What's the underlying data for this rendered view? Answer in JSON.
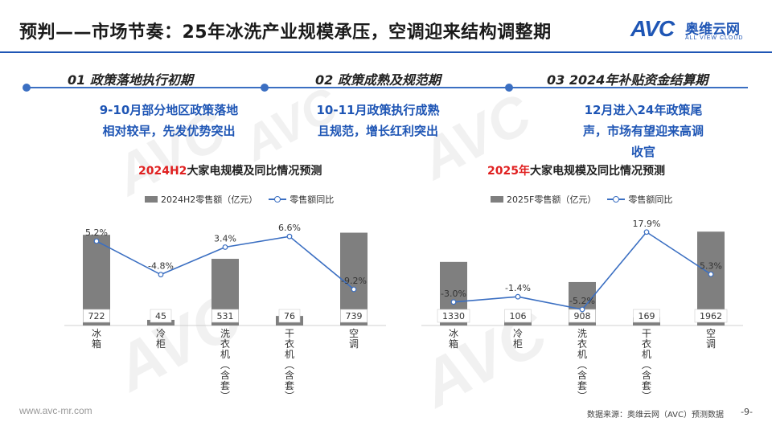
{
  "header": {
    "title": "预判——市场节奏：25年冰洗产业规模承压，空调迎来结构调整期",
    "logo_mark": "AVC",
    "logo_cn": "奥维云网",
    "logo_en": "ALL VIEW CLOUD"
  },
  "phases": [
    {
      "title": "01   政策落地执行初期",
      "desc_lines": [
        "9-10月部分地区政策落地",
        "相对较早，先发优势突出"
      ]
    },
    {
      "title": "02  政策成熟及规范期",
      "desc_lines": [
        "10-11月政策执行成熟",
        "且规范，增长红利突出"
      ]
    },
    {
      "title": "03  2024年补贴资金结算期",
      "desc_lines": [
        "12月进入24年政策尾",
        "声，市场有望迎来高调",
        "收官"
      ]
    }
  ],
  "colors": {
    "accent": "#1f56b5",
    "bar": "#7f7f7f",
    "line": "#3b6fc2",
    "highlight": "#e02020"
  },
  "charts": [
    {
      "title_highlight": "2024H2",
      "title_rest": "大家电规模及同比情况预测",
      "legend_bar": "2024H2零售额（亿元）",
      "legend_line": "零售额同比"
    },
    {
      "title_highlight": "2025年",
      "title_rest": "大家电规模及同比情况预测",
      "legend_bar": "2025F零售额（亿元）",
      "legend_line": "零售额同比"
    }
  ],
  "chart_data": [
    {
      "type": "bar",
      "title": "2024H2大家电规模及同比情况预测",
      "categories": [
        "冰箱",
        "冷柜",
        "洗衣机（含套）",
        "干衣机（含套）",
        "空调"
      ],
      "series": [
        {
          "name": "2024H2零售额（亿元）",
          "type": "bar",
          "values": [
            722,
            45,
            531,
            76,
            739
          ]
        },
        {
          "name": "零售额同比",
          "type": "line",
          "unit": "%",
          "values": [
            5.2,
            -4.8,
            3.4,
            6.6,
            -9.2
          ]
        }
      ],
      "value_labels": [
        "722",
        "45",
        "531",
        "76",
        "739"
      ],
      "pct_labels": [
        "5.2%",
        "-4.8%",
        "3.4%",
        "6.6%",
        "-9.2%"
      ],
      "bar_ylim": [
        0,
        800
      ],
      "line_ylim": [
        -20,
        10
      ]
    },
    {
      "type": "bar",
      "title": "2025年大家电规模及同比情况预测",
      "categories": [
        "冰箱",
        "冷柜",
        "洗衣机（含套）",
        "干衣机（含套）",
        "空调"
      ],
      "series": [
        {
          "name": "2025F零售额（亿元）",
          "type": "bar",
          "values": [
            1330,
            106,
            908,
            169,
            1962
          ]
        },
        {
          "name": "零售额同比",
          "type": "line",
          "unit": "%",
          "values": [
            -3.0,
            -1.4,
            -5.2,
            17.9,
            5.3
          ]
        }
      ],
      "value_labels": [
        "1330",
        "106",
        "908",
        "169",
        "1962"
      ],
      "pct_labels": [
        "-3.0%",
        "-1.4%",
        "-5.2%",
        "17.9%",
        "5.3%"
      ],
      "bar_ylim": [
        0,
        2100
      ],
      "line_ylim": [
        -10,
        20
      ]
    }
  ],
  "footer": {
    "website": "www.avc-mr.com",
    "source": "数据来源：奥维云网（AVC）预测数据",
    "page": "-9-"
  }
}
